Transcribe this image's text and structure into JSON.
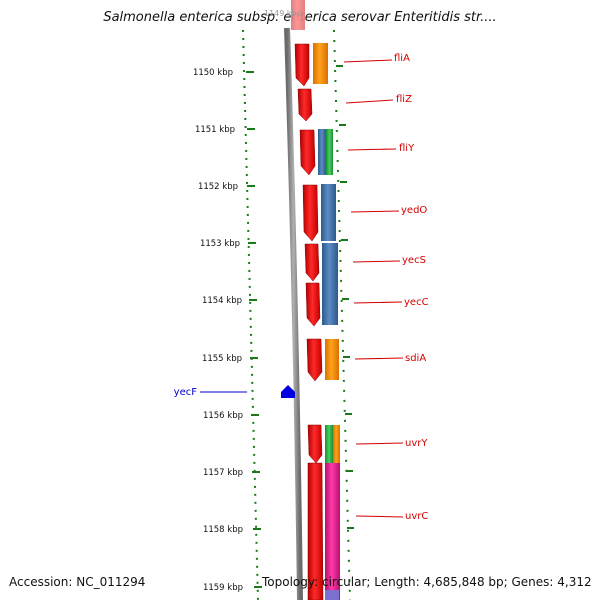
{
  "title": "Salmonella enterica subsp. enterica serovar Enteritidis str....",
  "footer": {
    "accession": "Accession: NC_011294",
    "summary": "Topology: circular; Length: 4,685,848 bp; Genes: 4,312"
  },
  "ruler": {
    "labels": [
      "1150 kbp",
      "1151 kbp",
      "1152 kbp",
      "1153 kbp",
      "1154 kbp",
      "1155 kbp",
      "1156 kbp",
      "1157 kbp",
      "1158 kbp",
      "1159 kbp"
    ]
  },
  "genes": {
    "forward": [
      {
        "label": "fliA",
        "color": "#d40000"
      },
      {
        "label": "fliZ",
        "color": "#d40000"
      },
      {
        "label": "fliY",
        "color": "#d40000"
      },
      {
        "label": "yedO",
        "color": "#d40000"
      },
      {
        "label": "yecS",
        "color": "#d40000"
      },
      {
        "label": "yecC",
        "color": "#d40000"
      },
      {
        "label": "sdiA",
        "color": "#d40000"
      },
      {
        "label": "uvrY",
        "color": "#d40000"
      },
      {
        "label": "uvrC",
        "color": "#d40000"
      }
    ],
    "reverse": [
      {
        "label": "yecF",
        "color": "#0000cc"
      }
    ]
  },
  "colors": {
    "cds": "#e8141c",
    "cog_orange": "#f28c00",
    "cog_blue": "#3b6fa8",
    "cog_green": "#2fb24a",
    "cog_magenta": "#e0168c",
    "cog_lavender": "#7b6fd0",
    "backbone": "#8a8a8a",
    "tick": "#1a7a1a",
    "reverse_gene": "#0000e0",
    "forward_label": "#d40000",
    "reverse_label": "#0000cc"
  }
}
